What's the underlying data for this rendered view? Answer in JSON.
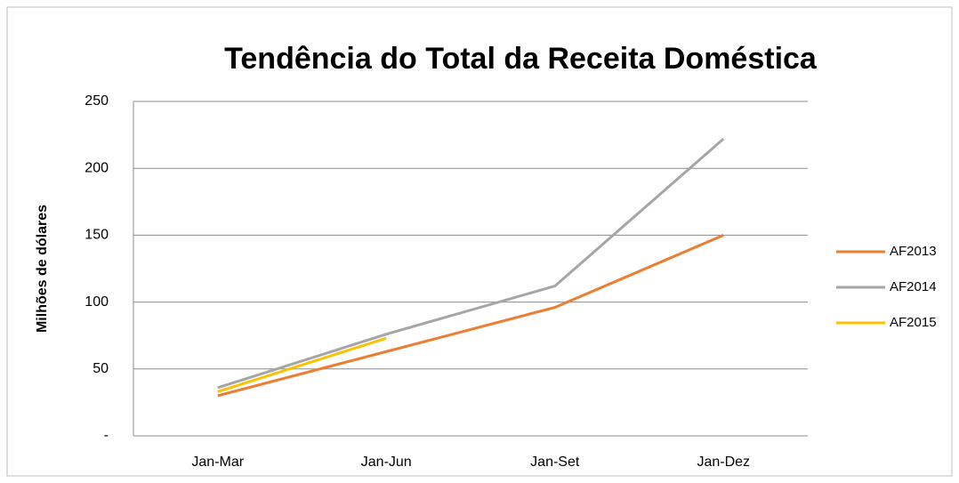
{
  "chart_data": {
    "type": "line",
    "title": "Tendência do Total da Receita Doméstica",
    "y_label": "Milhões de dólares",
    "categories": [
      "Jan-Mar",
      "Jan-Jun",
      "Jan-Set",
      "Jan-Dez"
    ],
    "series": [
      {
        "name": "AF2013",
        "color": "#ed7d31",
        "values": [
          30,
          63,
          96,
          150
        ]
      },
      {
        "name": "AF2014",
        "color": "#a5a5a5",
        "values": [
          36,
          76,
          112,
          222
        ]
      },
      {
        "name": "AF2015",
        "color": "#ffc000",
        "values": [
          33,
          73,
          null,
          null
        ]
      }
    ],
    "ylim": [
      0,
      250
    ],
    "yticks": [
      {
        "value": 0,
        "label": "-"
      },
      50,
      100,
      150,
      200,
      250
    ],
    "grid": true,
    "legend": "right"
  }
}
